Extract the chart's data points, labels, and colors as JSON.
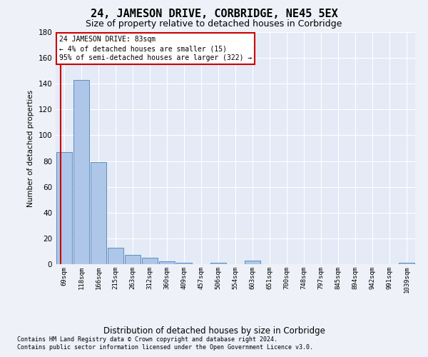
{
  "title": "24, JAMESON DRIVE, CORBRIDGE, NE45 5EX",
  "subtitle": "Size of property relative to detached houses in Corbridge",
  "xlabel": "Distribution of detached houses by size in Corbridge",
  "ylabel": "Number of detached properties",
  "bar_labels": [
    "69sqm",
    "118sqm",
    "166sqm",
    "215sqm",
    "263sqm",
    "312sqm",
    "360sqm",
    "409sqm",
    "457sqm",
    "506sqm",
    "554sqm",
    "603sqm",
    "651sqm",
    "700sqm",
    "748sqm",
    "797sqm",
    "845sqm",
    "894sqm",
    "942sqm",
    "991sqm",
    "1039sqm"
  ],
  "bar_values": [
    87,
    143,
    79,
    13,
    7,
    5,
    2,
    1,
    0,
    1,
    0,
    3,
    0,
    0,
    0,
    0,
    0,
    0,
    0,
    0,
    1
  ],
  "bar_color": "#aec6e8",
  "bar_edge_color": "#5a8fc0",
  "ylim": [
    0,
    180
  ],
  "yticks": [
    0,
    20,
    40,
    60,
    80,
    100,
    120,
    140,
    160,
    180
  ],
  "red_line_x": -0.22,
  "annotation_title": "24 JAMESON DRIVE: 83sqm",
  "annotation_line1": "← 4% of detached houses are smaller (15)",
  "annotation_line2": "95% of semi-detached houses are larger (322) →",
  "annotation_box_color": "#ffffff",
  "annotation_box_edge": "#cc0000",
  "footer1": "Contains HM Land Registry data © Crown copyright and database right 2024.",
  "footer2": "Contains public sector information licensed under the Open Government Licence v3.0.",
  "background_color": "#eef2f8",
  "plot_background": "#e4eaf6",
  "grid_color": "#ffffff",
  "title_fontsize": 11,
  "subtitle_fontsize": 9,
  "bar_width": 0.9
}
